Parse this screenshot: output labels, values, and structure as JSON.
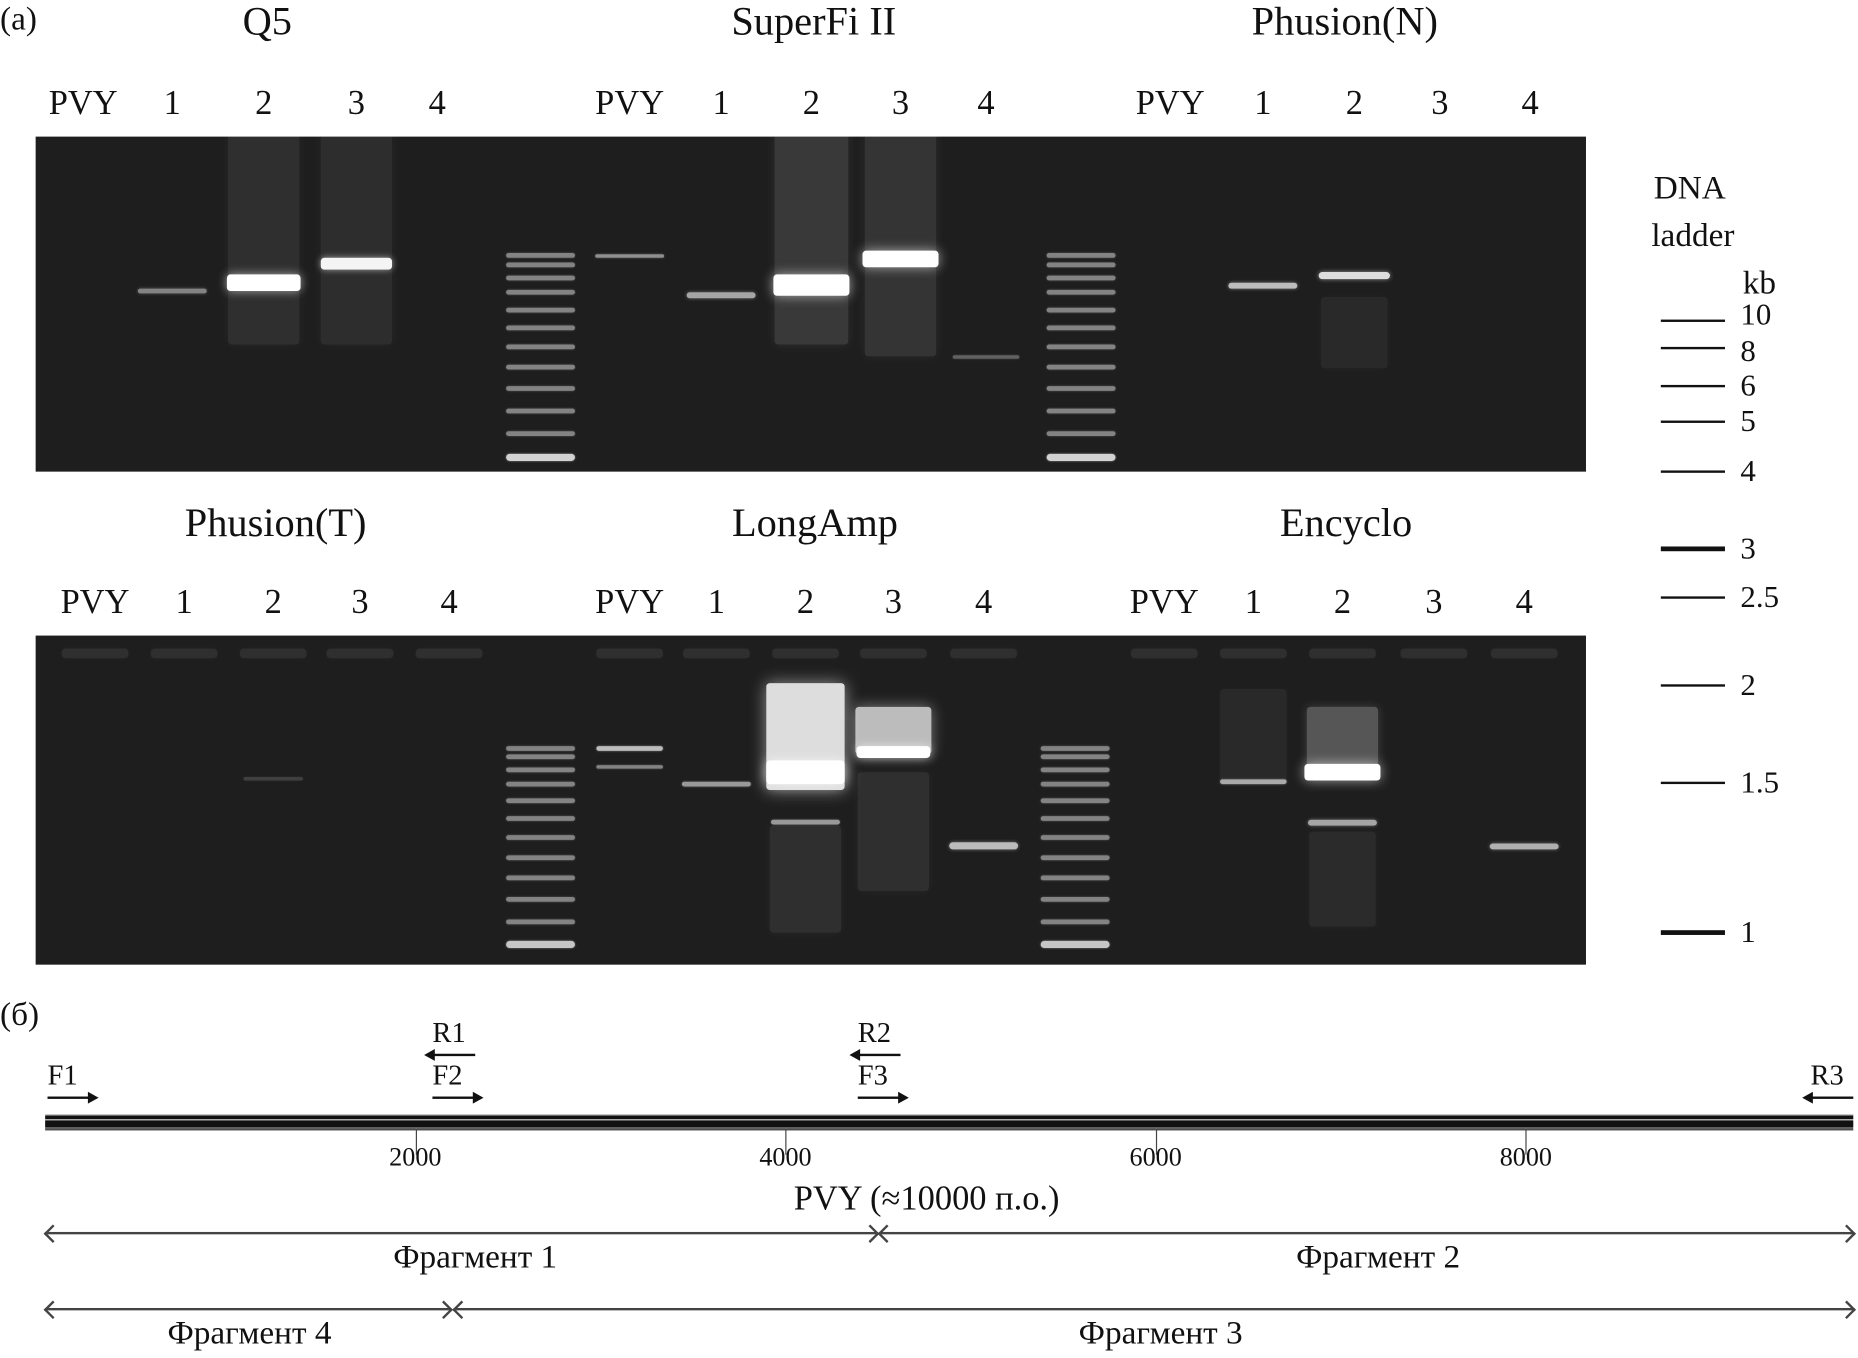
{
  "panel_a_label": "(a)",
  "panel_b_label": "(б)",
  "top_gel": {
    "titles": [
      "Q5",
      "SuperFi II",
      "Phusion(N)"
    ],
    "lanes": [
      "PVY",
      "1",
      "2",
      "3",
      "4"
    ]
  },
  "bottom_gel": {
    "titles": [
      "Phusion(T)",
      "LongAmp",
      "Encyclo"
    ],
    "lanes": [
      "PVY",
      "1",
      "2",
      "3",
      "4"
    ]
  },
  "ladder": {
    "title_line1": "DNA",
    "title_line2": "ladder",
    "unit": "kb",
    "marks": [
      "10",
      "8",
      "6",
      "5",
      "4",
      "3",
      "2.5",
      "2",
      "1.5",
      "1"
    ]
  },
  "genome": {
    "ticks": [
      "2000",
      "4000",
      "6000",
      "8000"
    ],
    "label": "PVY (≈10000 п.о.)",
    "primers": [
      "F1",
      "R1",
      "F2",
      "R2",
      "F3",
      "R3"
    ],
    "fragments": [
      "Фрагмент 1",
      "Фрагмент 2",
      "Фрагмент 4",
      "Фрагмент 3"
    ]
  }
}
